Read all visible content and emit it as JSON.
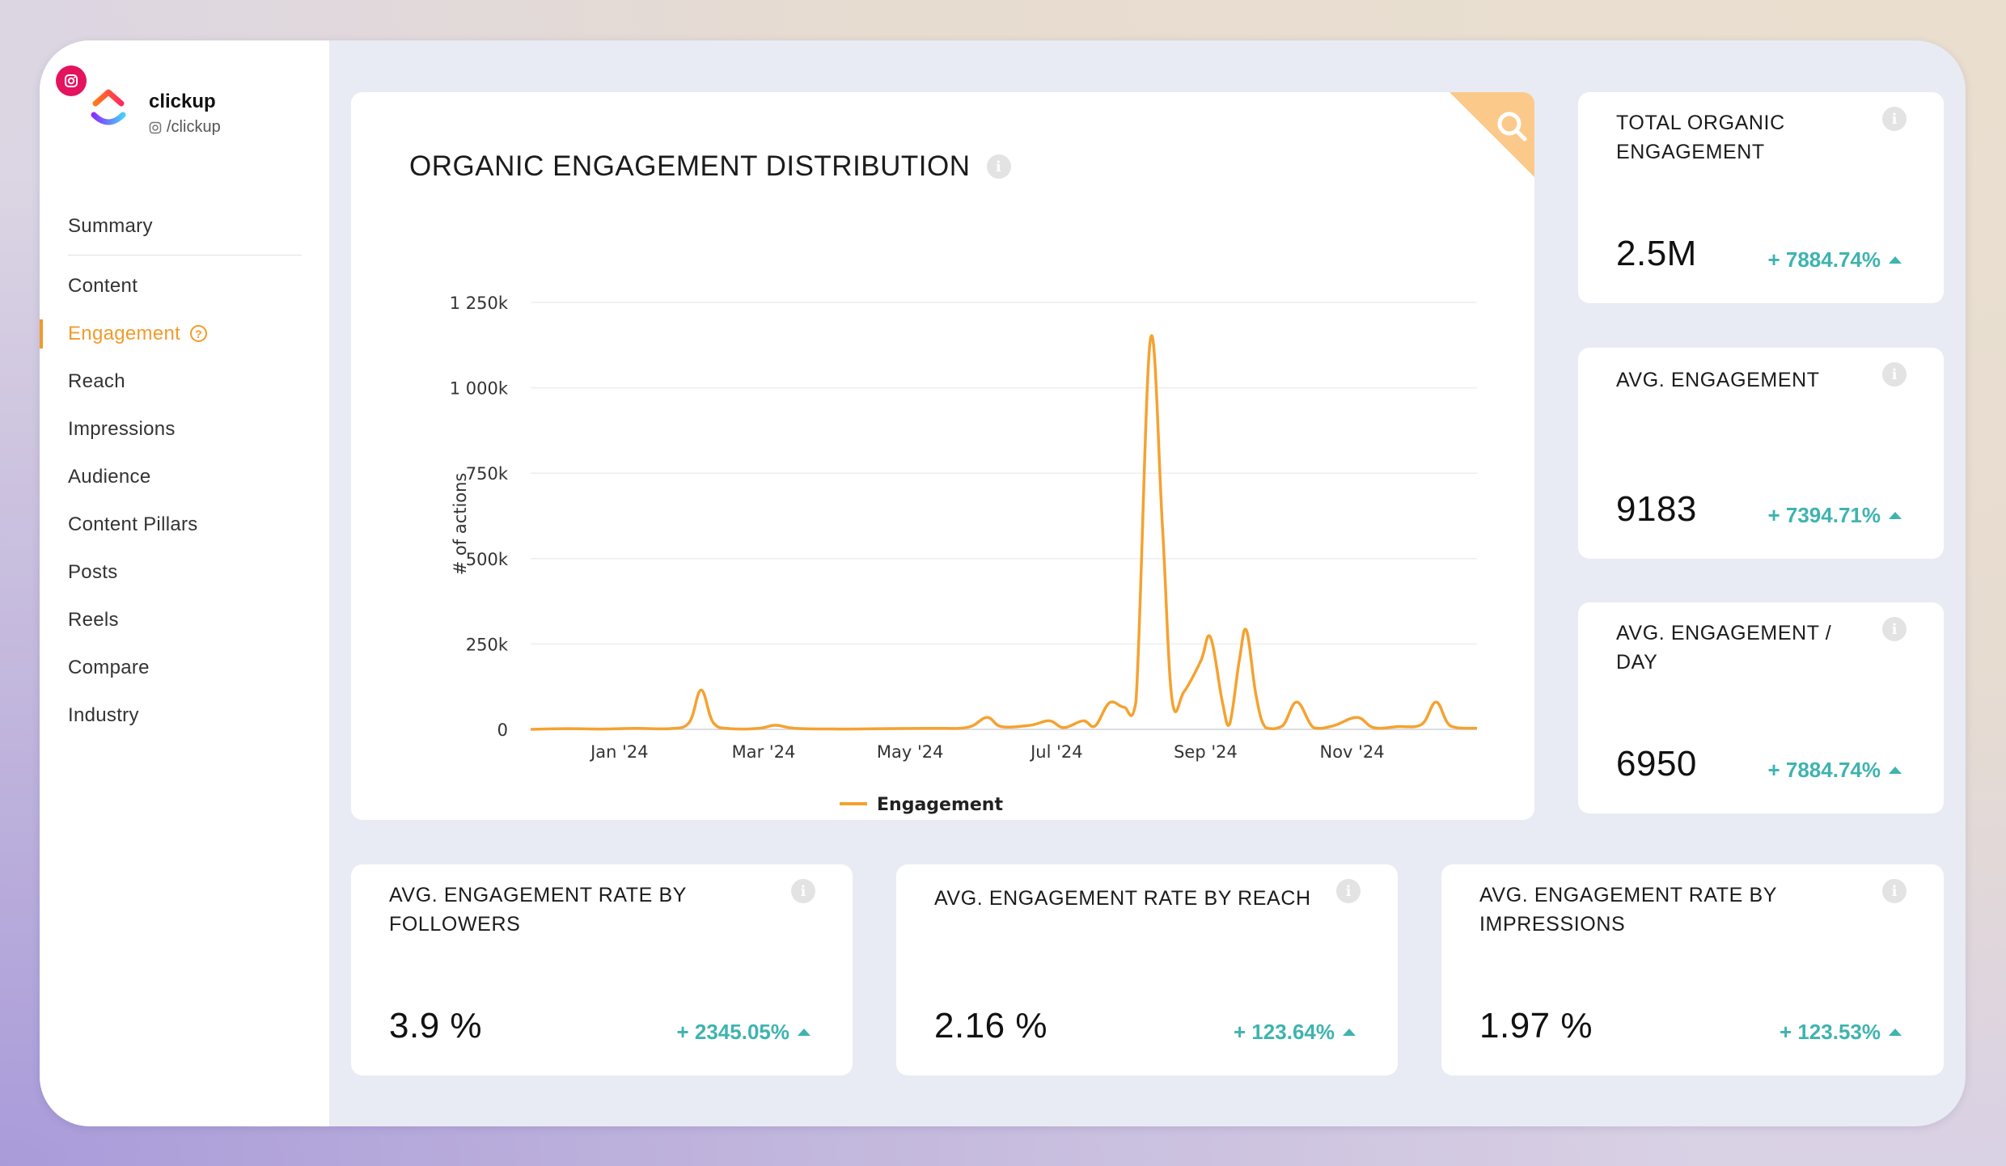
{
  "brand": {
    "name": "clickup",
    "handle": "/clickup"
  },
  "nav": {
    "items": [
      {
        "label": "Summary"
      },
      {
        "label": "Content"
      },
      {
        "label": "Engagement"
      },
      {
        "label": "Reach"
      },
      {
        "label": "Impressions"
      },
      {
        "label": "Audience"
      },
      {
        "label": "Content Pillars"
      },
      {
        "label": "Posts"
      },
      {
        "label": "Reels"
      },
      {
        "label": "Compare"
      },
      {
        "label": "Industry"
      }
    ],
    "active": "Engagement",
    "help_glyph": "?"
  },
  "chart": {
    "title": "ORGANIC ENGAGEMENT DISTRIBUTION",
    "info_glyph": "i"
  },
  "chart_data": {
    "type": "line",
    "title": "ORGANIC ENGAGEMENT DISTRIBUTION",
    "ylabel": "# of actions",
    "xlabel": "",
    "ylim": [
      0,
      1250000
    ],
    "y_ticks": [
      {
        "value": 0,
        "label": "0"
      },
      {
        "value": 250000,
        "label": "250k"
      },
      {
        "value": 500000,
        "label": "500k"
      },
      {
        "value": 750000,
        "label": "750k"
      },
      {
        "value": 1000000,
        "label": "1 000k"
      },
      {
        "value": 1250000,
        "label": "1 250k"
      }
    ],
    "x_ticks": [
      {
        "date": "2024-01-01",
        "label": "Jan '24"
      },
      {
        "date": "2024-03-01",
        "label": "Mar '24"
      },
      {
        "date": "2024-05-01",
        "label": "May '24"
      },
      {
        "date": "2024-07-01",
        "label": "Jul '24"
      },
      {
        "date": "2024-09-01",
        "label": "Sep '24"
      },
      {
        "date": "2024-11-01",
        "label": "Nov '24"
      }
    ],
    "xlim": [
      "2023-11-25",
      "2024-12-23"
    ],
    "grid": true,
    "legend": "bottom-center",
    "series": [
      {
        "name": "Engagement",
        "color": "#f5a230",
        "points": [
          [
            "2023-11-25",
            0
          ],
          [
            "2023-12-10",
            2000
          ],
          [
            "2023-12-25",
            1000
          ],
          [
            "2024-01-08",
            3000
          ],
          [
            "2024-01-22",
            2000
          ],
          [
            "2024-01-30",
            20000
          ],
          [
            "2024-02-04",
            115000
          ],
          [
            "2024-02-09",
            20000
          ],
          [
            "2024-02-16",
            2000
          ],
          [
            "2024-02-28",
            3000
          ],
          [
            "2024-03-06",
            12000
          ],
          [
            "2024-03-14",
            3000
          ],
          [
            "2024-04-01",
            1000
          ],
          [
            "2024-04-20",
            2000
          ],
          [
            "2024-05-10",
            3000
          ],
          [
            "2024-05-25",
            6000
          ],
          [
            "2024-06-02",
            35000
          ],
          [
            "2024-06-08",
            8000
          ],
          [
            "2024-06-20",
            12000
          ],
          [
            "2024-06-28",
            25000
          ],
          [
            "2024-07-04",
            5000
          ],
          [
            "2024-07-12",
            25000
          ],
          [
            "2024-07-17",
            10000
          ],
          [
            "2024-07-23",
            78000
          ],
          [
            "2024-07-29",
            65000
          ],
          [
            "2024-08-03",
            80000
          ],
          [
            "2024-08-09",
            1140000
          ],
          [
            "2024-08-14",
            600000
          ],
          [
            "2024-08-18",
            90000
          ],
          [
            "2024-08-23",
            110000
          ],
          [
            "2024-08-30",
            200000
          ],
          [
            "2024-09-03",
            270000
          ],
          [
            "2024-09-08",
            80000
          ],
          [
            "2024-09-11",
            15000
          ],
          [
            "2024-09-15",
            200000
          ],
          [
            "2024-09-18",
            290000
          ],
          [
            "2024-09-22",
            100000
          ],
          [
            "2024-09-26",
            5000
          ],
          [
            "2024-10-03",
            10000
          ],
          [
            "2024-10-09",
            80000
          ],
          [
            "2024-10-16",
            5000
          ],
          [
            "2024-10-24",
            10000
          ],
          [
            "2024-11-03",
            35000
          ],
          [
            "2024-11-10",
            5000
          ],
          [
            "2024-11-20",
            8000
          ],
          [
            "2024-11-30",
            15000
          ],
          [
            "2024-12-06",
            80000
          ],
          [
            "2024-12-12",
            10000
          ],
          [
            "2024-12-23",
            3000
          ]
        ]
      }
    ]
  },
  "stats": {
    "total_organic": {
      "title": "TOTAL ORGANIC ENGAGEMENT",
      "value": "2.5M",
      "delta": "+ 7884.74%"
    },
    "avg_engagement": {
      "title": "AVG. ENGAGEMENT",
      "value": "9183",
      "delta": "+ 7394.71%"
    },
    "avg_per_day": {
      "title": "AVG. ENGAGEMENT / DAY",
      "value": "6950",
      "delta": "+ 7884.74%"
    },
    "rate_followers": {
      "title": "AVG. ENGAGEMENT RATE BY FOLLOWERS",
      "value": "3.9 %",
      "delta": "+ 2345.05%"
    },
    "rate_reach": {
      "title": "AVG. ENGAGEMENT RATE BY REACH",
      "value": "2.16 %",
      "delta": "+ 123.64%"
    },
    "rate_impressions": {
      "title": "AVG. ENGAGEMENT RATE BY IMPRESSIONS",
      "value": "1.97 %",
      "delta": "+ 123.53%"
    }
  },
  "colors": {
    "accent": "#f39a2b",
    "positive": "#3fb3b0",
    "instagram": "#e4135e"
  },
  "icons": {
    "corner": "search-icon",
    "info": "info-icon",
    "trend": "triangle-up-icon"
  }
}
